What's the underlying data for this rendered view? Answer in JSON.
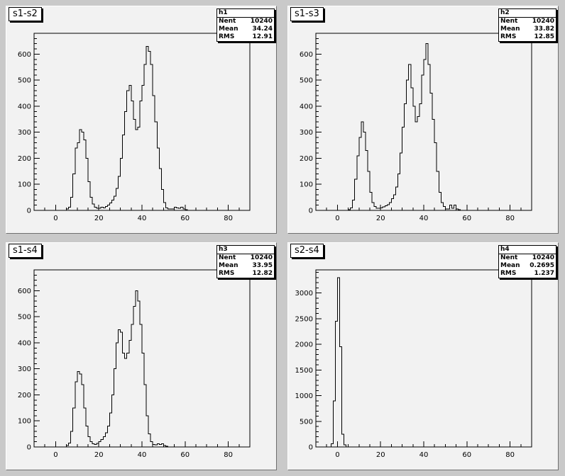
{
  "pads": [
    {
      "title": "s1-s2",
      "stats": {
        "name": "h1",
        "entries_label": "Nent",
        "entries": "10240",
        "mean_label": "Mean",
        "mean": "34.24",
        "rms_label": "RMS",
        "rms": "12.91"
      }
    },
    {
      "title": "s1-s3",
      "stats": {
        "name": "h2",
        "entries_label": "Nent",
        "entries": "10240",
        "mean_label": "Mean",
        "mean": "33.82",
        "rms_label": "RMS",
        "rms": "12.85"
      }
    },
    {
      "title": "s1-s4",
      "stats": {
        "name": "h3",
        "entries_label": "Nent",
        "entries": "10240",
        "mean_label": "Mean",
        "mean": "33.95",
        "rms_label": "RMS",
        "rms": "12.82"
      }
    },
    {
      "title": "s2-s4",
      "stats": {
        "name": "h4",
        "entries_label": "Nent",
        "entries": "10240",
        "mean_label": "Mean",
        "mean": "0.2695",
        "rms_label": "RMS",
        "rms": "1.237"
      }
    }
  ],
  "chart_data": [
    {
      "type": "bar",
      "title": "s1-s2",
      "xlabel": "",
      "ylabel": "",
      "xlim": [
        -10,
        90
      ],
      "ylim": [
        0,
        680
      ],
      "xticks": [
        0,
        20,
        40,
        60,
        80
      ],
      "yticks": [
        0,
        100,
        200,
        300,
        400,
        500,
        600
      ],
      "bin_start": 5,
      "bin_width": 1,
      "values": [
        5,
        12,
        50,
        140,
        240,
        260,
        310,
        300,
        270,
        200,
        110,
        50,
        25,
        12,
        8,
        8,
        12,
        10,
        15,
        20,
        28,
        40,
        55,
        85,
        130,
        200,
        290,
        380,
        460,
        480,
        420,
        350,
        310,
        320,
        420,
        480,
        560,
        630,
        610,
        560,
        440,
        340,
        240,
        160,
        80,
        30,
        10,
        6,
        5,
        5,
        12,
        10,
        8,
        12,
        5,
        3
      ]
    },
    {
      "type": "bar",
      "title": "s1-s3",
      "xlabel": "",
      "ylabel": "",
      "xlim": [
        -10,
        90
      ],
      "ylim": [
        0,
        680
      ],
      "xticks": [
        0,
        20,
        40,
        60,
        80
      ],
      "yticks": [
        0,
        100,
        200,
        300,
        400,
        500,
        600
      ],
      "bin_start": 5,
      "bin_width": 1,
      "values": [
        3,
        10,
        40,
        120,
        210,
        280,
        340,
        300,
        230,
        150,
        70,
        30,
        15,
        8,
        8,
        10,
        14,
        18,
        22,
        30,
        45,
        60,
        90,
        140,
        220,
        320,
        410,
        500,
        560,
        470,
        400,
        340,
        360,
        410,
        520,
        580,
        640,
        560,
        450,
        350,
        260,
        150,
        70,
        30,
        15,
        5,
        5,
        20,
        8,
        20,
        5,
        3
      ]
    },
    {
      "type": "bar",
      "title": "s1-s4",
      "xlabel": "",
      "ylabel": "",
      "xlim": [
        -10,
        90
      ],
      "ylim": [
        0,
        680
      ],
      "xticks": [
        0,
        20,
        40,
        60,
        80
      ],
      "yticks": [
        0,
        100,
        200,
        300,
        400,
        500,
        600
      ],
      "bin_start": 5,
      "bin_width": 1,
      "values": [
        5,
        15,
        60,
        150,
        250,
        290,
        280,
        240,
        150,
        80,
        40,
        20,
        12,
        10,
        14,
        20,
        28,
        40,
        55,
        80,
        130,
        200,
        300,
        400,
        450,
        440,
        360,
        340,
        360,
        410,
        470,
        540,
        600,
        560,
        470,
        360,
        240,
        120,
        50,
        20,
        10,
        8,
        12,
        10,
        12,
        5,
        3
      ]
    },
    {
      "type": "bar",
      "title": "s2-s4",
      "xlabel": "",
      "ylabel": "",
      "xlim": [
        -10,
        90
      ],
      "ylim": [
        0,
        3450
      ],
      "xticks": [
        0,
        20,
        40,
        60,
        80
      ],
      "yticks": [
        0,
        500,
        1000,
        1500,
        2000,
        2500,
        3000
      ],
      "bin_start": -3,
      "bin_width": 1,
      "values": [
        60,
        900,
        2450,
        3300,
        1950,
        250,
        40
      ]
    }
  ]
}
